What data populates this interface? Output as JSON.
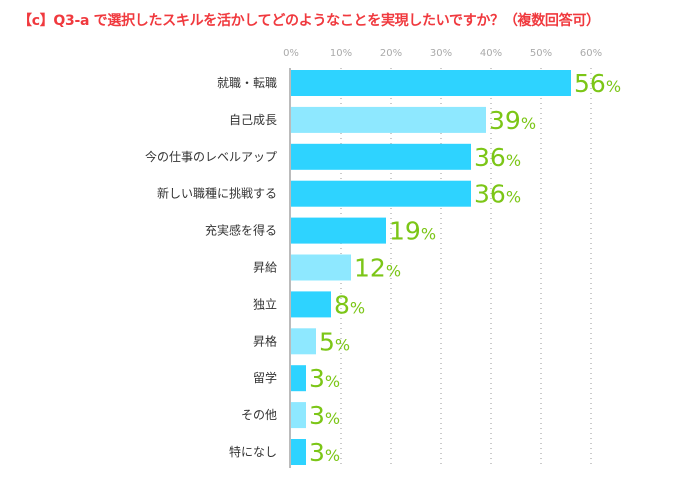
{
  "chart_data": {
    "type": "bar",
    "orientation": "horizontal",
    "title": "【c】Q3-a で選択したスキルを活かしてどのようなことを実現したいですか？（複数回答可）",
    "categories": [
      "就職・転職",
      "自己成長",
      "今の仕事のレベルアップ",
      "新しい職種に挑戦する",
      "充実感を得る",
      "昇給",
      "独立",
      "昇格",
      "留学",
      "その他",
      "特になし"
    ],
    "values": [
      56,
      39,
      36,
      36,
      19,
      12,
      8,
      5,
      3,
      3,
      3
    ],
    "value_labels": [
      "56",
      "39",
      "36",
      "36",
      "19",
      "12",
      "8",
      "5",
      "3",
      "3",
      "3"
    ],
    "value_suffix": "%",
    "bar_shade": [
      "dark",
      "light",
      "dark",
      "dark",
      "dark",
      "light",
      "dark",
      "light",
      "dark",
      "light",
      "dark"
    ],
    "xlim": [
      0,
      60
    ],
    "ticks": [
      "0%",
      "10%",
      "20%",
      "30%",
      "40%",
      "50%",
      "60%"
    ],
    "grid": "dotted vertical",
    "colors": {
      "dark": "#2ed3ff",
      "light": "#8ee8ff",
      "title": "#f0393e",
      "value": "#7cc617",
      "axis": "#bbbbbb"
    }
  }
}
